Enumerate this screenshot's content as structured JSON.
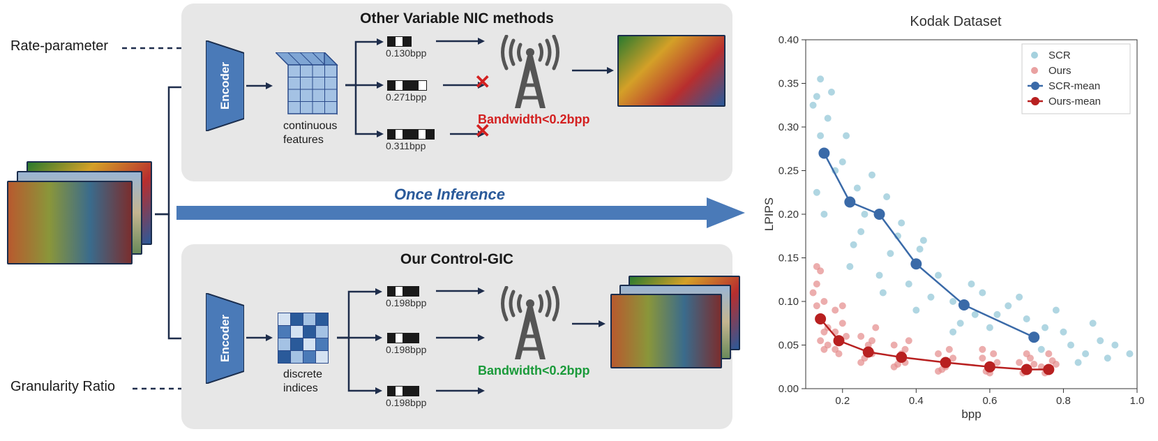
{
  "diagram": {
    "input_labels": {
      "rate_param": "Rate-parameter",
      "granularity": "Granularity Ratio"
    },
    "panel_top": {
      "title": "Other Variable NIC methods",
      "encoder": "Encoder",
      "features_label1": "continuous",
      "features_label2": "features",
      "bpp": [
        "0.130bpp",
        "0.271bpp",
        "0.311bpp"
      ],
      "bandwidth": "Bandwidth<0.2bpp",
      "bandwidth_color": "#d32020"
    },
    "panel_bottom": {
      "title": "Our Control-GIC",
      "encoder": "Encoder",
      "features_label1": "discrete",
      "features_label2": "indices",
      "bpp": [
        "0.198bpp",
        "0.198bpp",
        "0.198bpp"
      ],
      "bandwidth": "Bandwidth<0.2bpp",
      "bandwidth_color": "#1a9a3a"
    },
    "inference_label": "Once Inference",
    "colors": {
      "arrow": "#1e2d4b",
      "arrow_dashed": "#1e2d4b",
      "big_arrow_fill": "#4a7ab8",
      "big_arrow_text": "#2a5a9a",
      "encoder_fill": "#4a7ab8",
      "encoder_stroke": "#1a2d4d",
      "panel_bg": "#e7e7e7",
      "cube_fill": "#a4c2e4",
      "cube_stroke": "#2a4a8a",
      "tower": "#555555"
    }
  },
  "chart": {
    "title": "Kodak Dataset",
    "xlabel": "bpp",
    "ylabel": "LPIPS",
    "xlim": [
      0.1,
      1.0
    ],
    "ylim": [
      0.0,
      0.4
    ],
    "xticks": [
      0.2,
      0.4,
      0.6,
      0.8,
      1.0
    ],
    "yticks": [
      0.0,
      0.05,
      0.1,
      0.15,
      0.2,
      0.25,
      0.3,
      0.35,
      0.4
    ],
    "axis_fontsize": 15,
    "title_fontsize": 20,
    "legend": [
      "SCR",
      "Ours",
      "SCR-mean",
      "Ours-mean"
    ],
    "colors": {
      "scr_scatter": "#8fc5d6",
      "ours_scatter": "#e48a8a",
      "scr_mean": "#3a6aa8",
      "ours_mean": "#b82020",
      "background": "#ffffff",
      "axis": "#333333"
    },
    "scr_mean_line": {
      "x": [
        0.15,
        0.22,
        0.3,
        0.4,
        0.53,
        0.72
      ],
      "y": [
        0.27,
        0.214,
        0.2,
        0.143,
        0.096,
        0.059
      ]
    },
    "ours_mean_line": {
      "x": [
        0.14,
        0.19,
        0.27,
        0.36,
        0.48,
        0.6,
        0.7,
        0.76
      ],
      "y": [
        0.08,
        0.055,
        0.042,
        0.036,
        0.03,
        0.025,
        0.022,
        0.022
      ]
    },
    "scr_scatter_points": [
      [
        0.13,
        0.335
      ],
      [
        0.14,
        0.355
      ],
      [
        0.15,
        0.27
      ],
      [
        0.12,
        0.325
      ],
      [
        0.16,
        0.31
      ],
      [
        0.14,
        0.29
      ],
      [
        0.18,
        0.25
      ],
      [
        0.13,
        0.225
      ],
      [
        0.17,
        0.34
      ],
      [
        0.15,
        0.2
      ],
      [
        0.2,
        0.26
      ],
      [
        0.22,
        0.215
      ],
      [
        0.24,
        0.23
      ],
      [
        0.21,
        0.29
      ],
      [
        0.25,
        0.18
      ],
      [
        0.23,
        0.165
      ],
      [
        0.26,
        0.2
      ],
      [
        0.22,
        0.14
      ],
      [
        0.3,
        0.2
      ],
      [
        0.32,
        0.22
      ],
      [
        0.28,
        0.245
      ],
      [
        0.33,
        0.155
      ],
      [
        0.35,
        0.175
      ],
      [
        0.3,
        0.13
      ],
      [
        0.36,
        0.19
      ],
      [
        0.31,
        0.11
      ],
      [
        0.4,
        0.145
      ],
      [
        0.42,
        0.17
      ],
      [
        0.38,
        0.12
      ],
      [
        0.44,
        0.105
      ],
      [
        0.41,
        0.16
      ],
      [
        0.46,
        0.13
      ],
      [
        0.4,
        0.09
      ],
      [
        0.5,
        0.1
      ],
      [
        0.53,
        0.095
      ],
      [
        0.55,
        0.12
      ],
      [
        0.52,
        0.075
      ],
      [
        0.58,
        0.11
      ],
      [
        0.56,
        0.085
      ],
      [
        0.5,
        0.065
      ],
      [
        0.62,
        0.085
      ],
      [
        0.65,
        0.095
      ],
      [
        0.6,
        0.07
      ],
      [
        0.68,
        0.105
      ],
      [
        0.72,
        0.06
      ],
      [
        0.7,
        0.08
      ],
      [
        0.75,
        0.07
      ],
      [
        0.74,
        0.045
      ],
      [
        0.82,
        0.05
      ],
      [
        0.8,
        0.065
      ],
      [
        0.86,
        0.04
      ],
      [
        0.9,
        0.055
      ],
      [
        0.88,
        0.075
      ],
      [
        0.94,
        0.05
      ],
      [
        0.92,
        0.035
      ],
      [
        0.98,
        0.04
      ],
      [
        0.78,
        0.09
      ],
      [
        0.84,
        0.03
      ]
    ],
    "ours_scatter_points": [
      [
        0.13,
        0.12
      ],
      [
        0.14,
        0.08
      ],
      [
        0.15,
        0.065
      ],
      [
        0.13,
        0.095
      ],
      [
        0.16,
        0.07
      ],
      [
        0.14,
        0.135
      ],
      [
        0.12,
        0.11
      ],
      [
        0.15,
        0.045
      ],
      [
        0.14,
        0.055
      ],
      [
        0.13,
        0.14
      ],
      [
        0.15,
        0.1
      ],
      [
        0.16,
        0.05
      ],
      [
        0.18,
        0.09
      ],
      [
        0.19,
        0.055
      ],
      [
        0.2,
        0.075
      ],
      [
        0.18,
        0.045
      ],
      [
        0.21,
        0.06
      ],
      [
        0.19,
        0.04
      ],
      [
        0.2,
        0.095
      ],
      [
        0.18,
        0.065
      ],
      [
        0.25,
        0.06
      ],
      [
        0.27,
        0.042
      ],
      [
        0.28,
        0.055
      ],
      [
        0.26,
        0.035
      ],
      [
        0.29,
        0.07
      ],
      [
        0.27,
        0.05
      ],
      [
        0.25,
        0.03
      ],
      [
        0.28,
        0.04
      ],
      [
        0.34,
        0.05
      ],
      [
        0.36,
        0.036
      ],
      [
        0.37,
        0.045
      ],
      [
        0.35,
        0.028
      ],
      [
        0.38,
        0.055
      ],
      [
        0.36,
        0.04
      ],
      [
        0.34,
        0.025
      ],
      [
        0.37,
        0.03
      ],
      [
        0.46,
        0.04
      ],
      [
        0.48,
        0.03
      ],
      [
        0.49,
        0.045
      ],
      [
        0.47,
        0.022
      ],
      [
        0.5,
        0.035
      ],
      [
        0.48,
        0.025
      ],
      [
        0.46,
        0.02
      ],
      [
        0.58,
        0.035
      ],
      [
        0.6,
        0.025
      ],
      [
        0.61,
        0.04
      ],
      [
        0.59,
        0.02
      ],
      [
        0.62,
        0.03
      ],
      [
        0.6,
        0.018
      ],
      [
        0.58,
        0.045
      ],
      [
        0.68,
        0.03
      ],
      [
        0.7,
        0.022
      ],
      [
        0.71,
        0.035
      ],
      [
        0.69,
        0.018
      ],
      [
        0.72,
        0.028
      ],
      [
        0.7,
        0.04
      ],
      [
        0.74,
        0.025
      ],
      [
        0.76,
        0.022
      ],
      [
        0.77,
        0.032
      ],
      [
        0.75,
        0.018
      ],
      [
        0.78,
        0.028
      ],
      [
        0.76,
        0.04
      ]
    ],
    "marker_size": 5,
    "mean_marker_size": 8,
    "line_width": 2.5
  }
}
